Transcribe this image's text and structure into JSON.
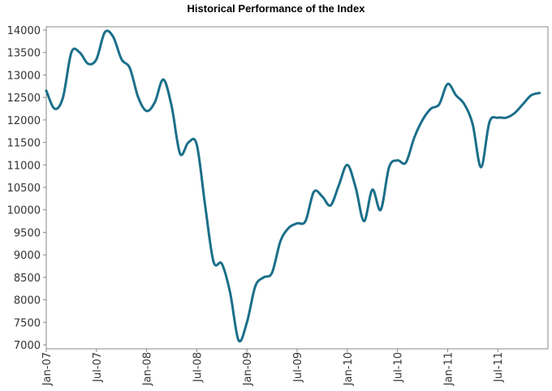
{
  "chart_data": {
    "type": "line",
    "title": "Historical Performance of the Index",
    "xlabel": "",
    "ylabel": "",
    "ylim": [
      7000,
      14000
    ],
    "y_ticks": [
      7000,
      7500,
      8000,
      8500,
      9000,
      9500,
      10000,
      10500,
      11000,
      11500,
      12000,
      12500,
      13000,
      13500,
      14000
    ],
    "x_ticks": [
      "Jan-07",
      "Jul-07",
      "Jan-08",
      "Jul-08",
      "Jan-09",
      "Jul-09",
      "Jan-10",
      "Jul-10",
      "Jan-11",
      "Jul-11"
    ],
    "grid": false,
    "line_color": "#1b6f8a",
    "x": [
      "2007-01",
      "2007-02",
      "2007-03",
      "2007-04",
      "2007-05",
      "2007-06",
      "2007-07",
      "2007-08",
      "2007-09",
      "2007-10",
      "2007-11",
      "2007-12",
      "2008-01",
      "2008-02",
      "2008-03",
      "2008-04",
      "2008-05",
      "2008-06",
      "2008-07",
      "2008-08",
      "2008-09",
      "2008-10",
      "2008-11",
      "2008-12",
      "2009-01",
      "2009-02",
      "2009-03",
      "2009-04",
      "2009-05",
      "2009-06",
      "2009-07",
      "2009-08",
      "2009-09",
      "2009-10",
      "2009-11",
      "2009-12",
      "2010-01",
      "2010-02",
      "2010-03",
      "2010-04",
      "2010-05",
      "2010-06",
      "2010-07",
      "2010-08",
      "2010-09",
      "2010-10",
      "2010-11",
      "2010-12",
      "2011-01",
      "2011-02",
      "2011-03",
      "2011-04",
      "2011-05",
      "2011-06",
      "2011-07",
      "2011-08",
      "2011-09",
      "2011-10",
      "2011-11",
      "2011-12"
    ],
    "values": [
      12650,
      12250,
      12500,
      13500,
      13500,
      13250,
      13350,
      13950,
      13850,
      13350,
      13150,
      12500,
      12200,
      12400,
      12900,
      12300,
      11250,
      11500,
      11450,
      10100,
      8850,
      8800,
      8150,
      7100,
      7500,
      8300,
      8500,
      8600,
      9300,
      9600,
      9700,
      9750,
      10400,
      10300,
      10100,
      10550,
      11000,
      10500,
      9750,
      10450,
      10000,
      10950,
      11100,
      11050,
      11600,
      12000,
      12250,
      12350,
      12800,
      12550,
      12350,
      11900,
      10950,
      11950,
      12050,
      12050,
      12150,
      12350,
      12550,
      12600
    ]
  }
}
